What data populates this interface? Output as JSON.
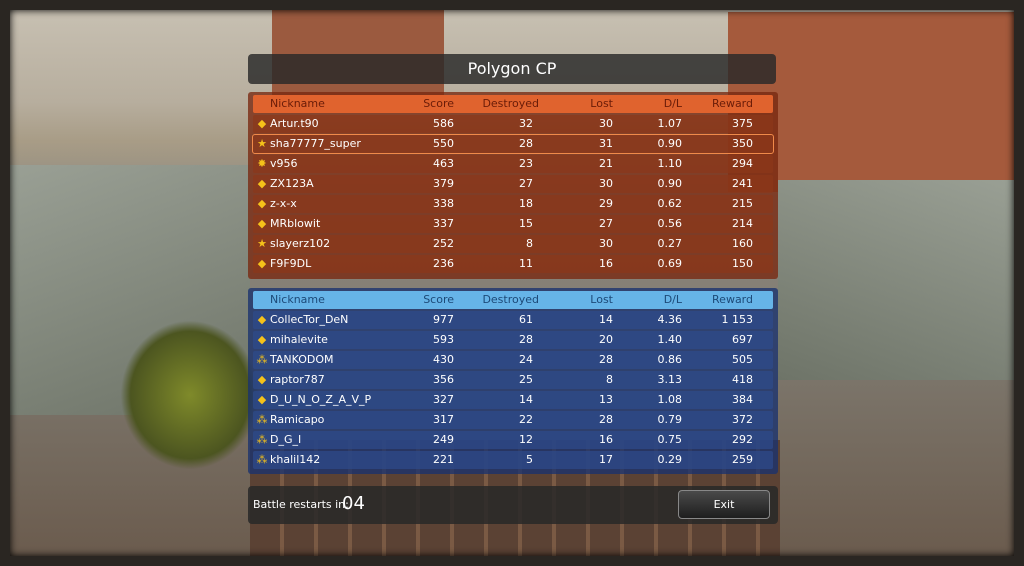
{
  "title": "Polygon CP",
  "columns": {
    "nickname": "Nickname",
    "score": "Score",
    "destroyed": "Destroyed",
    "lost": "Lost",
    "dl": "D/L",
    "reward": "Reward"
  },
  "red_team": {
    "color": "#e0632e",
    "players": [
      {
        "nick": "Artur.t90",
        "score": "586",
        "destroyed": "32",
        "lost": "30",
        "dl": "1.07",
        "reward": "375",
        "rank_icon": "rank-diamond-icon"
      },
      {
        "nick": "sha77777_super",
        "score": "550",
        "destroyed": "28",
        "lost": "31",
        "dl": "0.90",
        "reward": "350",
        "rank_icon": "rank-star-icon",
        "highlighted": true
      },
      {
        "nick": "v956",
        "score": "463",
        "destroyed": "23",
        "lost": "21",
        "dl": "1.10",
        "reward": "294",
        "rank_icon": "rank-cross-icon"
      },
      {
        "nick": "ZX123A",
        "score": "379",
        "destroyed": "27",
        "lost": "30",
        "dl": "0.90",
        "reward": "241",
        "rank_icon": "rank-diamond-icon"
      },
      {
        "nick": "z-x-x",
        "score": "338",
        "destroyed": "18",
        "lost": "29",
        "dl": "0.62",
        "reward": "215",
        "rank_icon": "rank-diamond-icon"
      },
      {
        "nick": "MRblowit",
        "score": "337",
        "destroyed": "15",
        "lost": "27",
        "dl": "0.56",
        "reward": "214",
        "rank_icon": "rank-diamond-icon"
      },
      {
        "nick": "slayerz102",
        "score": "252",
        "destroyed": "8",
        "lost": "30",
        "dl": "0.27",
        "reward": "160",
        "rank_icon": "rank-star-icon"
      },
      {
        "nick": "F9F9DL",
        "score": "236",
        "destroyed": "11",
        "lost": "16",
        "dl": "0.69",
        "reward": "150",
        "rank_icon": "rank-diamond-icon"
      }
    ]
  },
  "blue_team": {
    "color": "#66b4e8",
    "players": [
      {
        "nick": "CollecTor_DeN",
        "score": "977",
        "destroyed": "61",
        "lost": "14",
        "dl": "4.36",
        "reward": "1 153",
        "rank_icon": "rank-diamond-icon"
      },
      {
        "nick": "mihalevite",
        "score": "593",
        "destroyed": "28",
        "lost": "20",
        "dl": "1.40",
        "reward": "697",
        "rank_icon": "rank-diamond-icon"
      },
      {
        "nick": "TANKODOM",
        "score": "430",
        "destroyed": "24",
        "lost": "28",
        "dl": "0.86",
        "reward": "505",
        "rank_icon": "rank-stars-icon"
      },
      {
        "nick": "raptor787",
        "score": "356",
        "destroyed": "25",
        "lost": "8",
        "dl": "3.13",
        "reward": "418",
        "rank_icon": "rank-diamond-icon"
      },
      {
        "nick": "D_U_N_O_Z_A_V_P",
        "score": "327",
        "destroyed": "14",
        "lost": "13",
        "dl": "1.08",
        "reward": "384",
        "rank_icon": "rank-diamond-icon"
      },
      {
        "nick": "Ramicapo",
        "score": "317",
        "destroyed": "22",
        "lost": "28",
        "dl": "0.79",
        "reward": "372",
        "rank_icon": "rank-stars-icon"
      },
      {
        "nick": "D_G_I",
        "score": "249",
        "destroyed": "12",
        "lost": "16",
        "dl": "0.75",
        "reward": "292",
        "rank_icon": "rank-stars-icon"
      },
      {
        "nick": "khalil142",
        "score": "221",
        "destroyed": "5",
        "lost": "17",
        "dl": "0.29",
        "reward": "259",
        "rank_icon": "rank-stars-icon"
      }
    ]
  },
  "footer": {
    "restart_label": "Battle restarts in:",
    "restart_value": "04",
    "exit_label": "Exit"
  }
}
